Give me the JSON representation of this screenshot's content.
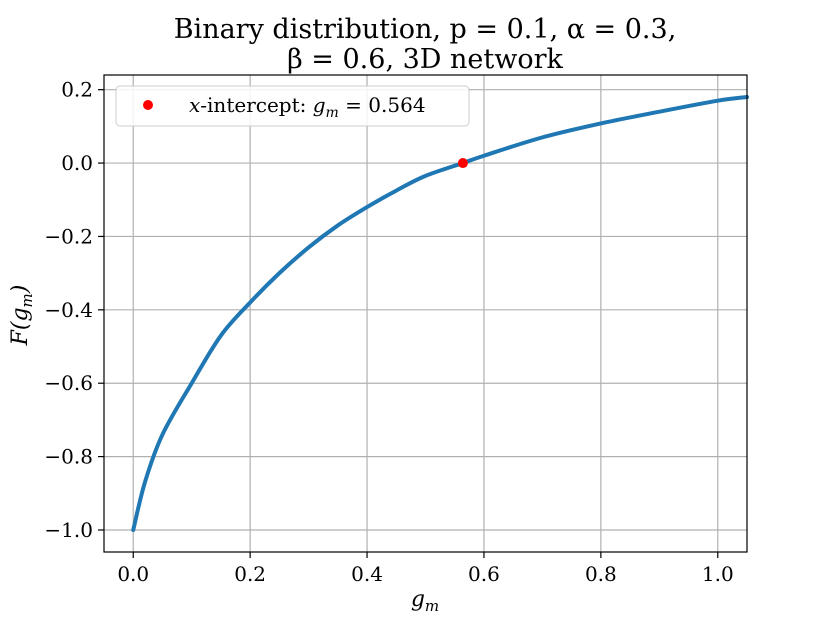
{
  "chart_data": {
    "type": "line",
    "title_line1": "Binary distribution, p = 0.1, α = 0.3,",
    "title_line2": "β = 0.6, 3D network",
    "xlabel": "g_m",
    "ylabel": "F(g_m)",
    "xlim": [
      -0.05,
      1.05
    ],
    "ylim": [
      -1.06,
      0.24
    ],
    "xticks": [
      "0.0",
      "0.2",
      "0.4",
      "0.6",
      "0.8",
      "1.0"
    ],
    "xtick_values": [
      0.0,
      0.2,
      0.4,
      0.6,
      0.8,
      1.0
    ],
    "yticks": [
      "0.2",
      "0.0",
      "−0.2",
      "−0.4",
      "−0.6",
      "−0.8",
      "−1.0"
    ],
    "ytick_values": [
      0.2,
      0.0,
      -0.2,
      -0.4,
      -0.6,
      -0.8,
      -1.0
    ],
    "grid": true,
    "legend_location": "upper-left",
    "series": [
      {
        "x": [
          0.0,
          0.02,
          0.05,
          0.1,
          0.15,
          0.2,
          0.25,
          0.3,
          0.35,
          0.4,
          0.45,
          0.5,
          0.564,
          0.6,
          0.7,
          0.8,
          0.9,
          1.0,
          1.05
        ],
        "y": [
          -1.0,
          -0.87,
          -0.74,
          -0.6,
          -0.47,
          -0.38,
          -0.3,
          -0.23,
          -0.17,
          -0.12,
          -0.075,
          -0.035,
          0.0,
          0.02,
          0.07,
          0.108,
          0.14,
          0.17,
          0.18
        ],
        "color": "#1f77b4"
      }
    ],
    "points": [
      {
        "label": "x-intercept: g_m = 0.564",
        "x": 0.564,
        "y": 0.0,
        "color": "#ff0000"
      }
    ]
  }
}
